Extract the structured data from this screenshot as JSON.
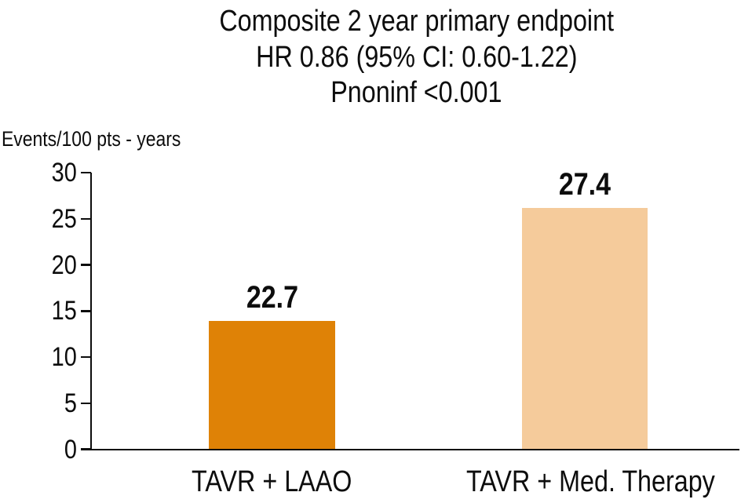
{
  "chart_data": {
    "type": "bar",
    "title_lines": [
      "Composite 2 year primary endpoint",
      "HR 0.86 (95% CI: 0.60-1.22)",
      "Pnoninf <0.001"
    ],
    "ylabel": "Events/100 pts - years",
    "categories": [
      "TAVR + LAAO",
      "TAVR + Med. Therapy"
    ],
    "values": [
      22.7,
      27.4
    ],
    "value_labels": [
      "22.7",
      "27.4"
    ],
    "bar_colors": [
      "#DF8206",
      "#F5CB9B"
    ],
    "yticks": [
      0,
      5,
      10,
      15,
      20,
      25,
      30
    ],
    "ylim": [
      0,
      30
    ],
    "xlabel": "",
    "grid": false,
    "legend": false,
    "layout": {
      "drawn_bar_heights_axis_units": [
        13.9,
        26.1
      ],
      "note": "printed bars are not drawn to scale with their value labels",
      "axis_color": "#0d0d0d",
      "text_color": "#0d0d0d",
      "background": "#ffffff"
    }
  }
}
